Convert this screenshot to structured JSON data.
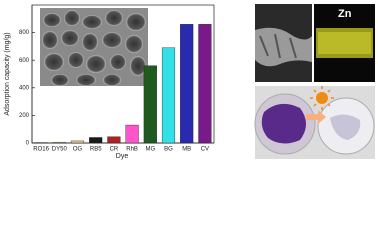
{
  "chart_data": {
    "type": "bar",
    "ylabel": "Adsorption capacity (mg/g)",
    "xlabel": "Dye",
    "categories": [
      "RO16",
      "DY50",
      "OG",
      "RB5",
      "CR",
      "RhB",
      "MG",
      "BG",
      "MB",
      "CV"
    ],
    "values": [
      3,
      6,
      15,
      40,
      45,
      130,
      560,
      690,
      860,
      860
    ],
    "colors": [
      "#222222",
      "#d8b98a",
      "#e8c48a",
      "#1a1a1a",
      "#b02020",
      "#ff55cc",
      "#1f5a1f",
      "#33e0e8",
      "#2a2ab0",
      "#7a1a8a"
    ],
    "ylim": [
      0,
      1000
    ],
    "yticks": [
      0,
      200,
      400,
      600,
      800
    ],
    "annotations": [
      "Zn"
    ]
  }
}
